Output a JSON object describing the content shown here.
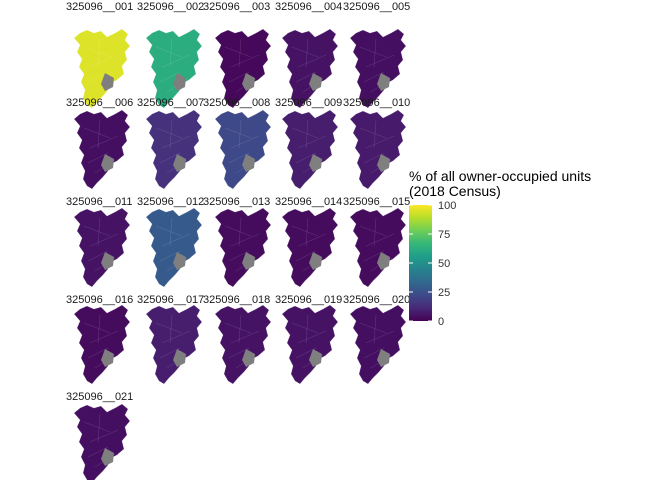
{
  "chart_data": {
    "type": "choropleth-facets",
    "legend": {
      "title_line1": "% of all owner-occupied units",
      "title_line2": "(2018 Census)",
      "ticks": [
        0,
        25,
        50,
        75,
        100
      ],
      "range": [
        0,
        100
      ],
      "palette": [
        "#440154",
        "#482878",
        "#3e4a89",
        "#31688e",
        "#26828e",
        "#1f9e89",
        "#35b779",
        "#6ece58",
        "#b5de2b",
        "#fde725"
      ]
    },
    "facets": [
      {
        "label": "325096__001",
        "level": 0.95
      },
      {
        "label": "325096__002",
        "level": 0.62
      },
      {
        "label": "325096__003",
        "level": 0.02
      },
      {
        "label": "325096__004",
        "level": 0.05
      },
      {
        "label": "325096__005",
        "level": 0.04
      },
      {
        "label": "325096__006",
        "level": 0.04
      },
      {
        "label": "325096__007",
        "level": 0.14
      },
      {
        "label": "325096__008",
        "level": 0.22
      },
      {
        "label": "325096__009",
        "level": 0.08
      },
      {
        "label": "325096__010",
        "level": 0.07
      },
      {
        "label": "325096__011",
        "level": 0.05
      },
      {
        "label": "325096__012",
        "level": 0.28
      },
      {
        "label": "325096__013",
        "level": 0.03
      },
      {
        "label": "325096__014",
        "level": 0.03
      },
      {
        "label": "325096__015",
        "level": 0.03
      },
      {
        "label": "325096__016",
        "level": 0.03
      },
      {
        "label": "325096__017",
        "level": 0.08
      },
      {
        "label": "325096__018",
        "level": 0.05
      },
      {
        "label": "325096__019",
        "level": 0.05
      },
      {
        "label": "325096__020",
        "level": 0.04
      },
      {
        "label": "325096__021",
        "level": 0.04
      }
    ]
  }
}
